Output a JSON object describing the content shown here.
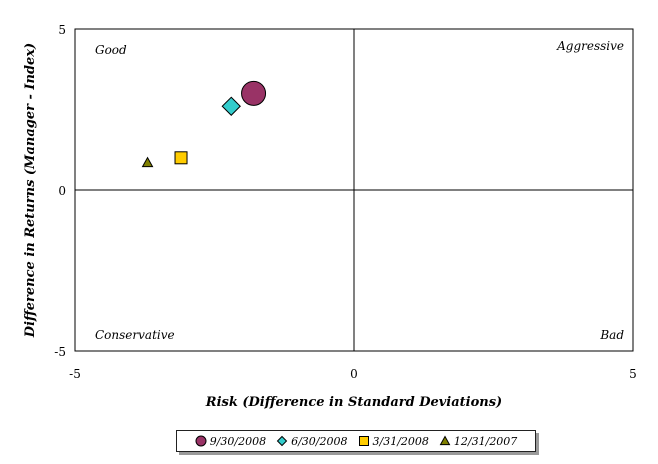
{
  "chart_data": {
    "type": "scatter",
    "title": "",
    "xlabel": "Risk (Difference in Standard Deviations)",
    "ylabel": "Difference in Returns (Manager - Index)",
    "xlim": [
      -5,
      5
    ],
    "ylim": [
      -5,
      5
    ],
    "x_ticks": [
      "-5",
      "0",
      "5"
    ],
    "y_ticks": [
      "-5",
      "0",
      "5"
    ],
    "grid": false,
    "quadrant_labels": {
      "top_left": "Good",
      "top_right": "Aggressive",
      "bottom_left": "Conservative",
      "bottom_right": "Bad"
    },
    "legend_position": "bottom",
    "series": [
      {
        "name": "9/30/2008",
        "marker": "circle",
        "color": "#993366",
        "x": -1.8,
        "y": 3.0
      },
      {
        "name": "6/30/2008",
        "marker": "diamond",
        "color": "#33CCCC",
        "x": -2.2,
        "y": 2.6
      },
      {
        "name": "3/31/2008",
        "marker": "square",
        "color": "#FFCC00",
        "x": -3.1,
        "y": 1.0
      },
      {
        "name": "12/31/2007",
        "marker": "triangle",
        "color": "#808000",
        "x": -3.7,
        "y": 0.85
      }
    ]
  }
}
